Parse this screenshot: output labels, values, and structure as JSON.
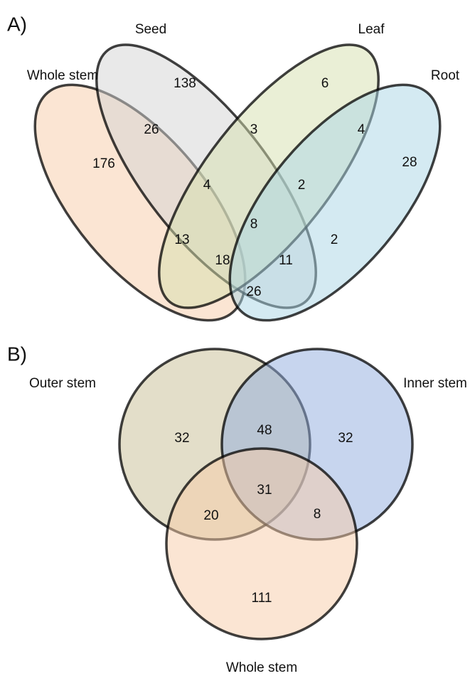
{
  "panel_a": {
    "label": "A)",
    "sets": [
      "Whole stem",
      "Seed",
      "Leaf",
      "Root"
    ],
    "regions": [
      138,
      6,
      26,
      3,
      4,
      28,
      176,
      4,
      2,
      8,
      13,
      2,
      18,
      11,
      26
    ]
  },
  "panel_b": {
    "label": "B)",
    "sets": [
      "Outer stem",
      "Inner stem",
      "Whole stem"
    ],
    "regions": [
      32,
      48,
      32,
      31,
      20,
      8,
      111
    ]
  }
}
